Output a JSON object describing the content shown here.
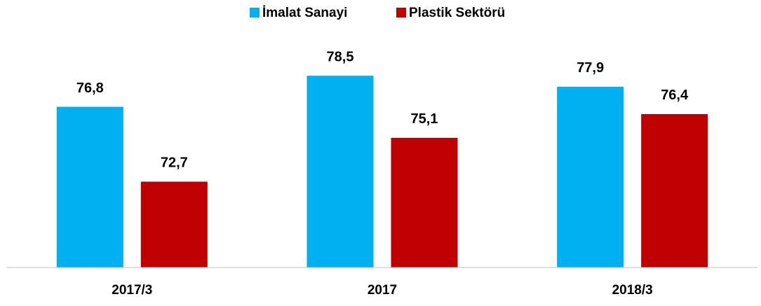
{
  "chart_data": {
    "type": "bar",
    "categories": [
      "2017/3",
      "2017",
      "2018/3"
    ],
    "series": [
      {
        "name": "İmalat Sanayi",
        "color": "#00b0f0",
        "values": [
          76.8,
          78.5,
          77.9
        ],
        "value_labels": [
          "76,8",
          "78,5",
          "77,9"
        ]
      },
      {
        "name": "Plastik Sektörü",
        "color": "#c00000",
        "values": [
          72.7,
          75.1,
          76.4
        ],
        "value_labels": [
          "72,7",
          "75,1",
          "76,4"
        ]
      }
    ],
    "ylim": [
      68,
      81
    ],
    "legend": "top"
  }
}
